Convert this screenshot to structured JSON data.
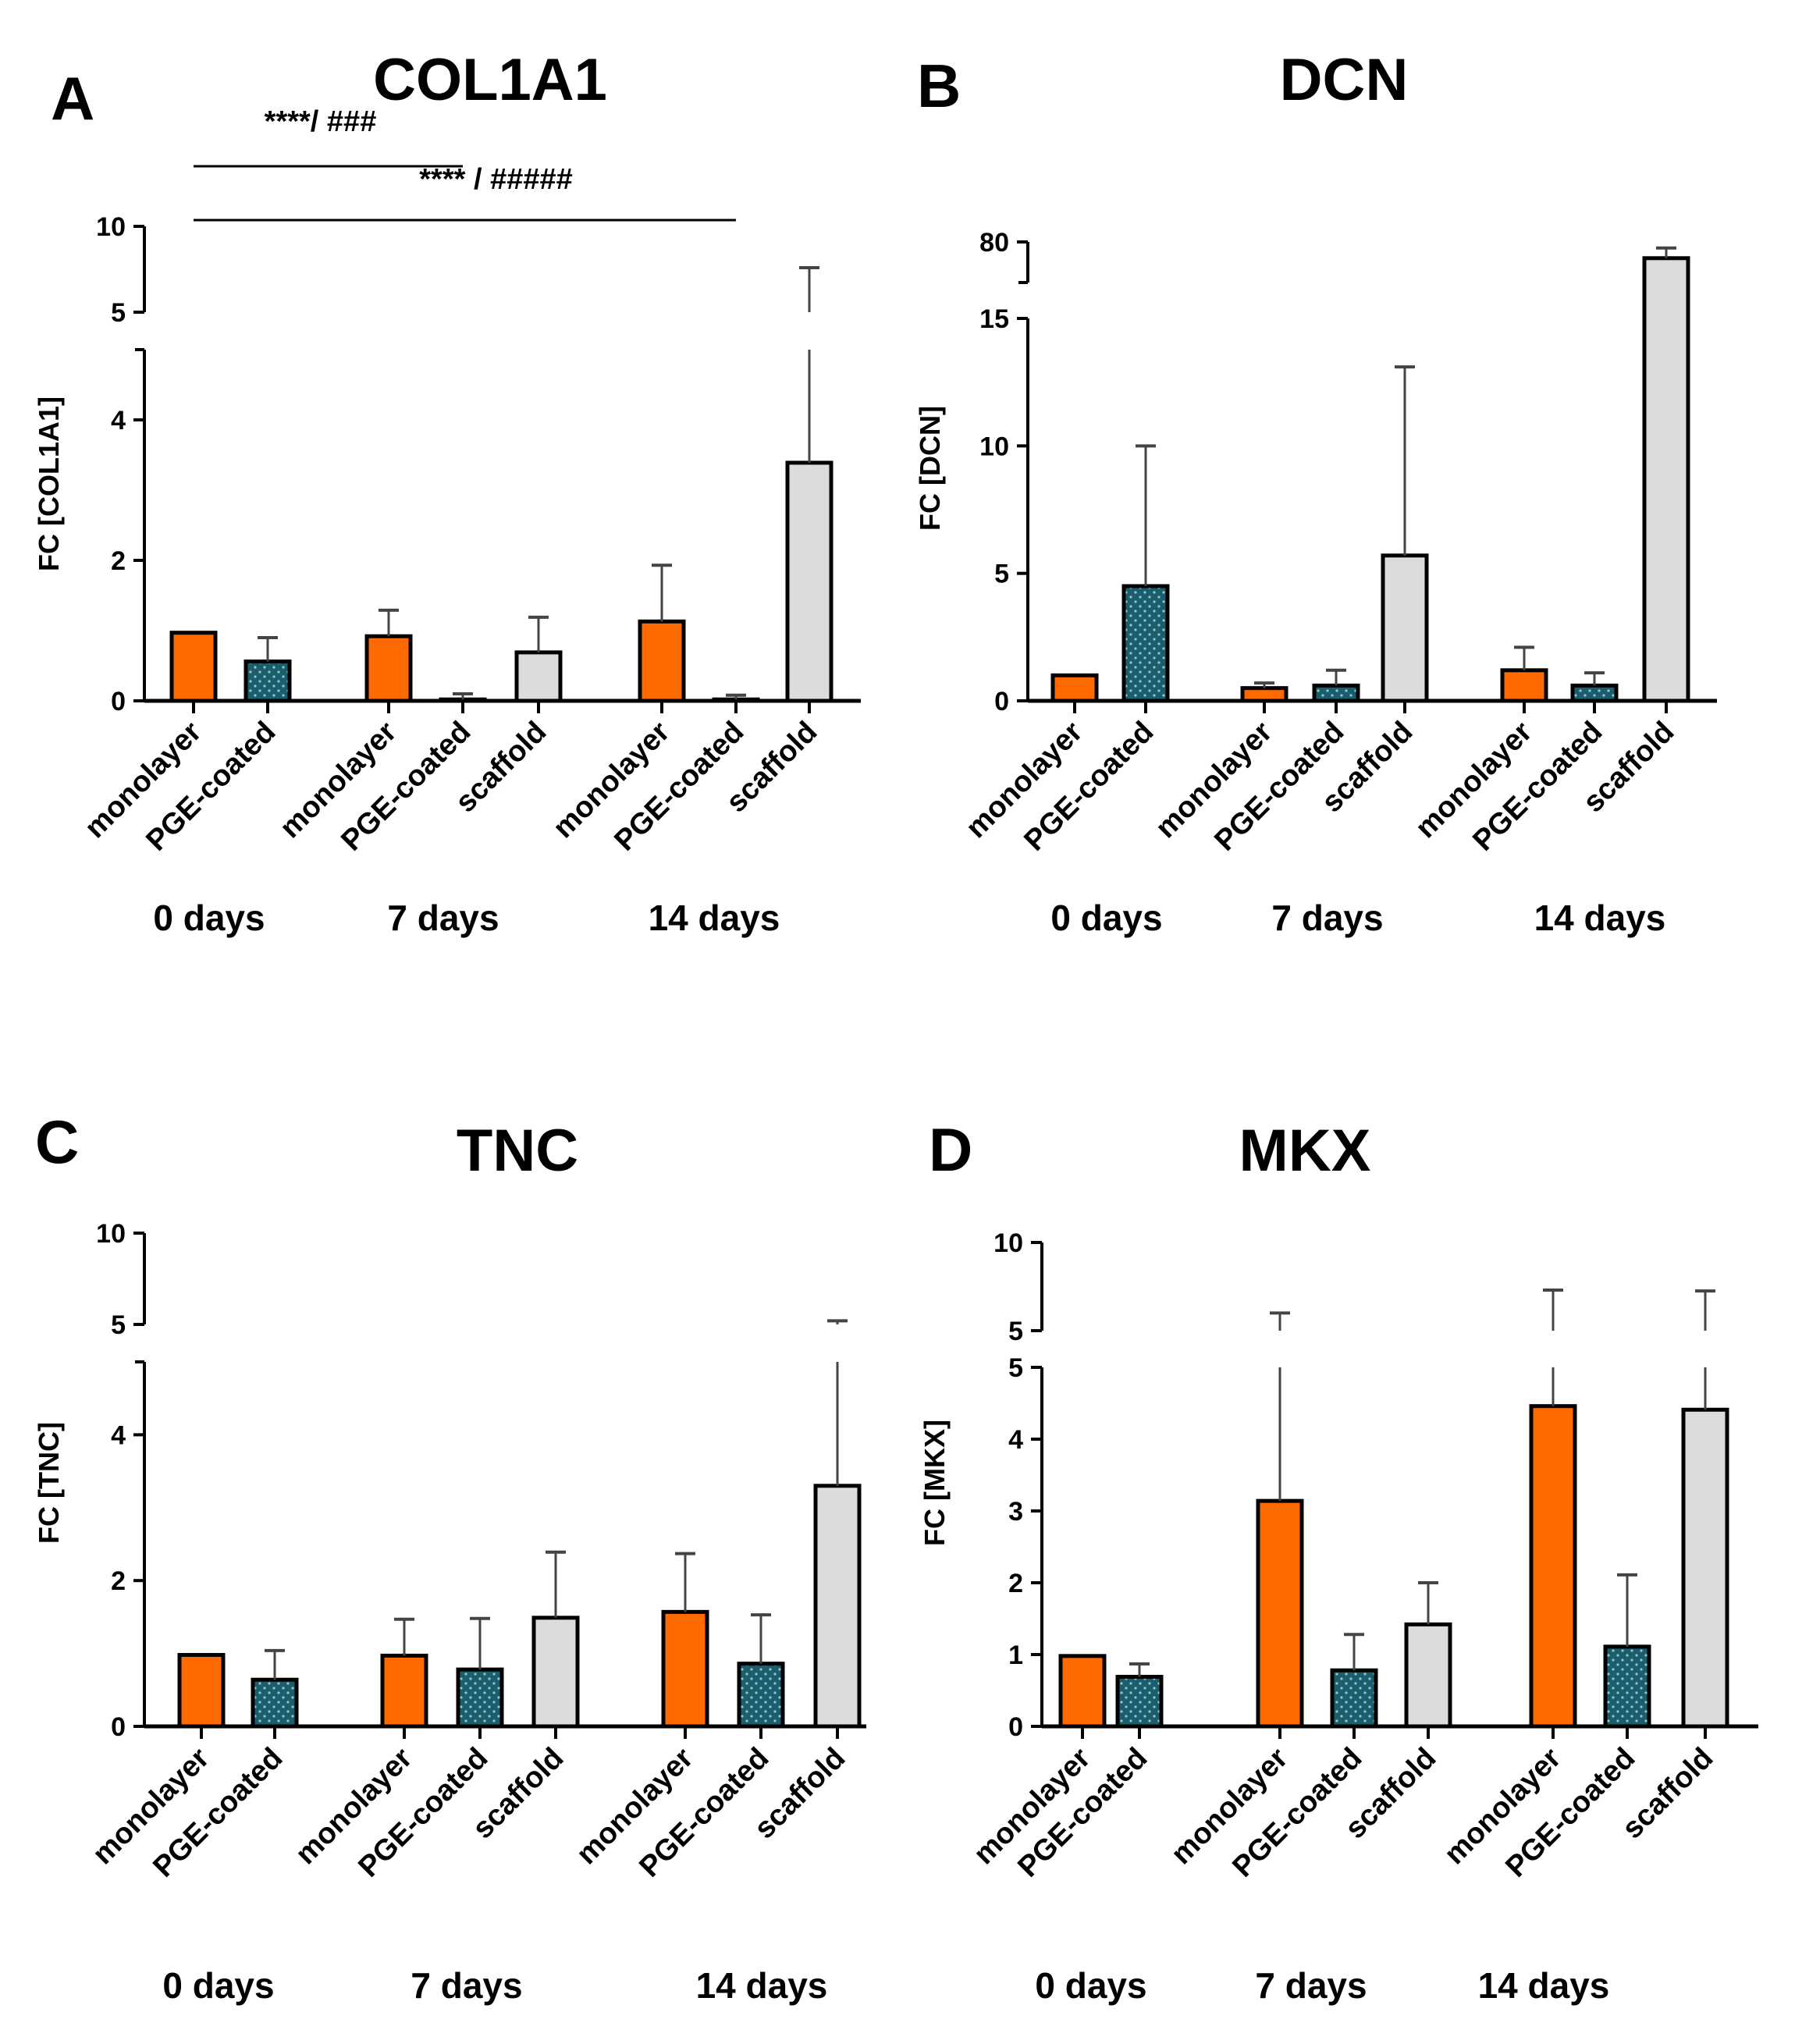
{
  "colors": {
    "monolayer": "#ff6a00",
    "pge_coated": "#1a5e6e",
    "scaffold": "#dcdcdc",
    "axis": "#000000",
    "error": "#444444"
  },
  "chart_data": [
    {
      "panel": "A",
      "type": "bar",
      "title": "COL1A1",
      "ylabel": "FC [COL1A1]",
      "groups": [
        "0 days",
        "7 days",
        "14 days"
      ],
      "categories": [
        "monolayer",
        "PGE-coated",
        "monolayer",
        "PGE-coated",
        "scaffold",
        "monolayer",
        "PGE-coated",
        "scaffold"
      ],
      "values": [
        0.97,
        0.56,
        0.92,
        0.02,
        0.69,
        1.13,
        0.02,
        3.39
      ],
      "errors": [
        0,
        0.34,
        0.37,
        0.08,
        0.5,
        0.8,
        0.06,
        4.2
      ],
      "ylim_lower": [
        0,
        5
      ],
      "ylim_upper": [
        5,
        10
      ],
      "yticks_lower": [
        0,
        2,
        4
      ],
      "yticks_upper": [
        5,
        10
      ],
      "annotations": [
        {
          "text": "****/ ###",
          "from_index": 0,
          "to_index": 3
        },
        {
          "text": "**** / #####",
          "from_index": 0,
          "to_index": 6
        }
      ]
    },
    {
      "panel": "B",
      "type": "bar",
      "title": "DCN",
      "ylabel": "FC [DCN]",
      "groups": [
        "0 days",
        "7 days",
        "14 days"
      ],
      "categories": [
        "monolayer",
        "PGE-coated",
        "monolayer",
        "PGE-coated",
        "scaffold",
        "monolayer",
        "PGE-coated",
        "scaffold"
      ],
      "values": [
        1.0,
        4.5,
        0.5,
        0.6,
        5.7,
        1.2,
        0.6,
        72
      ],
      "errors": [
        0,
        5.5,
        0.2,
        0.6,
        7.4,
        0.9,
        0.5,
        5
      ],
      "ylim_lower": [
        0,
        15
      ],
      "ylim_upper": [
        60,
        80
      ],
      "yticks_lower": [
        0,
        5,
        10,
        15
      ],
      "yticks_upper": [
        80
      ],
      "annotations": []
    },
    {
      "panel": "C",
      "type": "bar",
      "title": "TNC",
      "ylabel": "FC [TNC]",
      "groups": [
        "0 days",
        "7 days",
        "14 days"
      ],
      "categories": [
        "monolayer",
        "PGE-coated",
        "monolayer",
        "PGE-coated",
        "scaffold",
        "monolayer",
        "PGE-coated",
        "scaffold"
      ],
      "values": [
        0.98,
        0.64,
        0.97,
        0.78,
        1.49,
        1.57,
        0.86,
        3.3
      ],
      "errors": [
        0,
        0.4,
        0.5,
        0.7,
        0.9,
        0.8,
        0.67,
        1.9
      ],
      "ylim_lower": [
        0,
        5
      ],
      "ylim_upper": [
        5,
        10
      ],
      "yticks_lower": [
        0,
        2,
        4
      ],
      "yticks_upper": [
        5,
        10
      ],
      "annotations": []
    },
    {
      "panel": "D",
      "type": "bar",
      "title": "MKX",
      "ylabel": "FC [MKX]",
      "groups": [
        "0 days",
        "7 days",
        "14 days"
      ],
      "categories": [
        "monolayer",
        "PGE-coated",
        "monolayer",
        "PGE-coated",
        "scaffold",
        "monolayer",
        "PGE-coated",
        "scaffold"
      ],
      "values": [
        0.98,
        0.69,
        3.14,
        0.78,
        1.42,
        4.46,
        1.11,
        4.41
      ],
      "errors": [
        0,
        0.18,
        2.86,
        0.5,
        0.58,
        2.84,
        1.0,
        2.84
      ],
      "ylim_lower": [
        0,
        5
      ],
      "ylim_upper": [
        5,
        10
      ],
      "yticks_lower": [
        0,
        1,
        2,
        3,
        4,
        5
      ],
      "yticks_upper": [
        5,
        10
      ],
      "annotations": []
    }
  ]
}
